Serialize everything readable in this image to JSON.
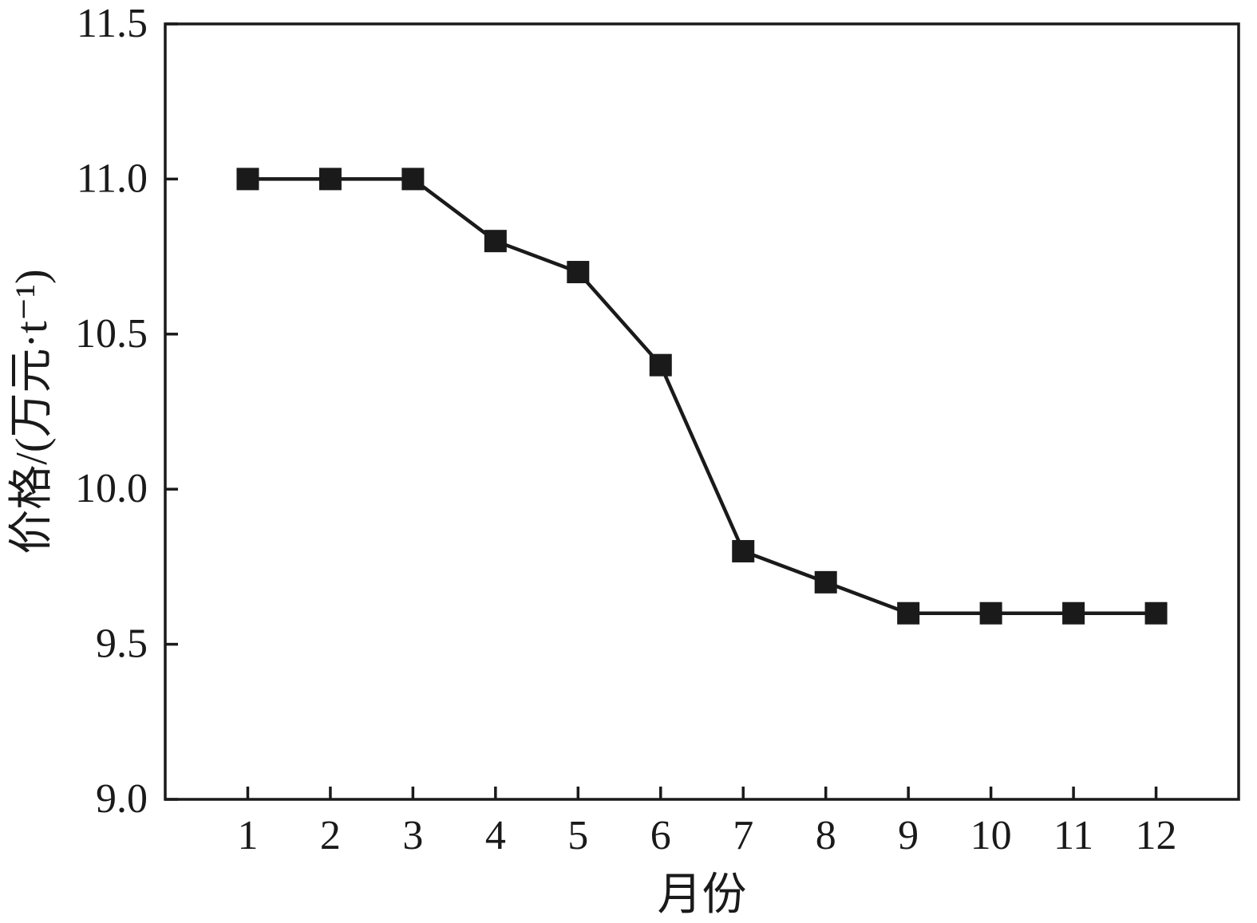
{
  "chart_data": {
    "type": "line",
    "title": "",
    "xlabel": "月份",
    "ylabel": "价格/(万元·t⁻¹)",
    "x": [
      1,
      2,
      3,
      4,
      5,
      6,
      7,
      8,
      9,
      10,
      11,
      12
    ],
    "series": [
      {
        "name": "价格",
        "values": [
          11.0,
          11.0,
          11.0,
          10.8,
          10.7,
          10.4,
          9.8,
          9.7,
          9.6,
          9.6,
          9.6,
          9.6
        ]
      }
    ],
    "ylim": [
      9.0,
      11.5
    ],
    "yticks": [
      9.0,
      9.5,
      10.0,
      10.5,
      11.0,
      11.5
    ],
    "ytick_labels": [
      "9.0",
      "9.5",
      "10.0",
      "10.5",
      "11.0",
      "11.5"
    ],
    "xtick_labels": [
      "1",
      "2",
      "3",
      "4",
      "5",
      "6",
      "7",
      "8",
      "9",
      "10",
      "11",
      "12"
    ],
    "grid": false,
    "legend_position": "none",
    "line_color": "#1a1a1a",
    "marker": "square",
    "marker_color": "#1a1a1a",
    "axis_color": "#1a1a1a",
    "background_color": "#ffffff"
  }
}
